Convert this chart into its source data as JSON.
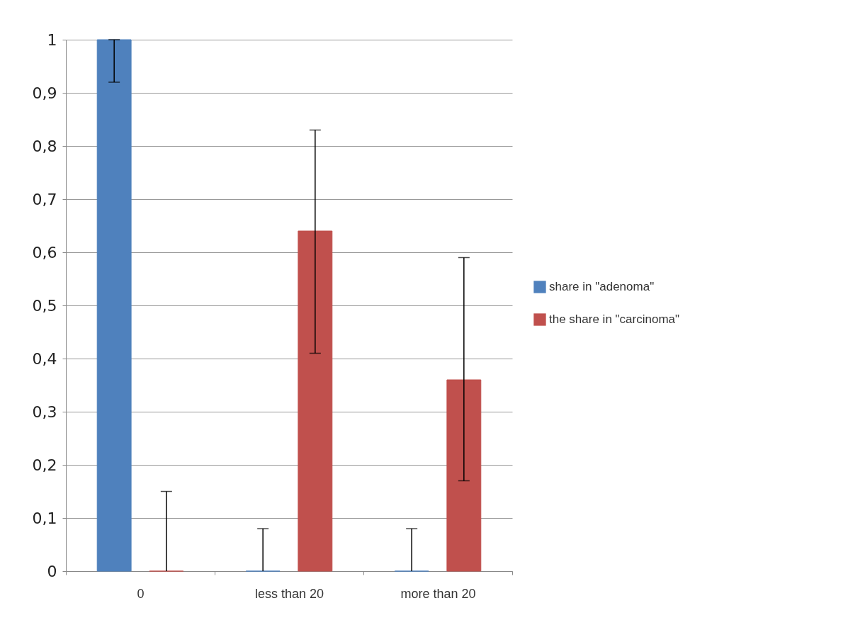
{
  "chart_data": {
    "type": "bar",
    "categories": [
      "0",
      "less than 20",
      "more than 20"
    ],
    "series": [
      {
        "name": "share in \"adenoma\"",
        "color": "#4f81bd",
        "values": [
          1,
          0,
          0
        ],
        "errors": [
          [
            0.92,
            1
          ],
          [
            0,
            0.08
          ],
          [
            0,
            0.08
          ]
        ]
      },
      {
        "name": "the share in \"carcinoma\"",
        "color": "#c0504d",
        "values": [
          0,
          0.64,
          0.36
        ],
        "errors": [
          [
            0,
            0.15
          ],
          [
            0.41,
            0.83
          ],
          [
            0.17,
            0.59
          ]
        ]
      }
    ],
    "ylim": [
      0,
      1
    ],
    "yticks": [
      {
        "value": 0,
        "label": "0"
      },
      {
        "value": 0.1,
        "label": "0,1"
      },
      {
        "value": 0.2,
        "label": "0,2"
      },
      {
        "value": 0.3,
        "label": "0,3"
      },
      {
        "value": 0.4,
        "label": "0,4"
      },
      {
        "value": 0.5,
        "label": "0,5"
      },
      {
        "value": 0.6,
        "label": "0,6"
      },
      {
        "value": 0.7,
        "label": "0,7"
      },
      {
        "value": 0.8,
        "label": "0,8"
      },
      {
        "value": 0.9,
        "label": "0,9"
      },
      {
        "value": 1,
        "label": "1"
      }
    ],
    "grid": "y",
    "legend": "right"
  }
}
